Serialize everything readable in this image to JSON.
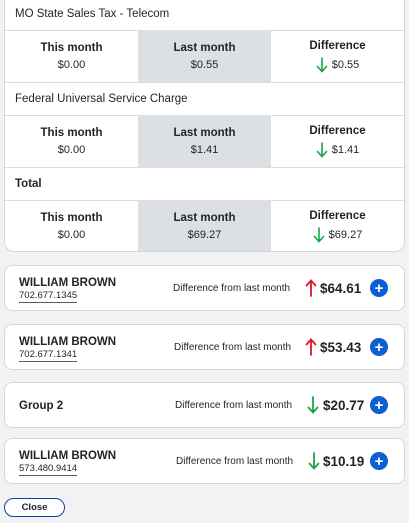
{
  "taxes": [
    {
      "title": "MO State Sales Tax - Telecom",
      "this_month": "$0.00",
      "last_month": "$0.55",
      "difference": "$0.55",
      "direction": "down"
    },
    {
      "title": "Federal Universal Service Charge",
      "this_month": "$0.00",
      "last_month": "$1.41",
      "difference": "$1.41",
      "direction": "down"
    },
    {
      "title": "Total",
      "this_month": "$0.00",
      "last_month": "$69.27",
      "difference": "$69.27",
      "direction": "down"
    }
  ],
  "column_labels": {
    "this_month": "This month",
    "last_month": "Last month",
    "difference": "Difference"
  },
  "lines": [
    {
      "name": "WILLIAM BROWN",
      "phone": "702.677.1345",
      "label": "Difference from last month",
      "amount": "$64.61",
      "direction": "up"
    },
    {
      "name": "WILLIAM BROWN",
      "phone": "702.677.1341",
      "label": "Difference from last month",
      "amount": "$53.43",
      "direction": "up"
    },
    {
      "name": "Group 2",
      "phone": "",
      "label": "Difference from last month",
      "amount": "$20.77",
      "direction": "down"
    },
    {
      "name": "WILLIAM BROWN",
      "phone": "573.480.9414",
      "label": "Difference from last month",
      "amount": "$10.19",
      "direction": "down"
    }
  ],
  "close_label": "Close",
  "colors": {
    "up": "#e0142b",
    "down": "#1aa547",
    "accent": "#0b5fd3"
  }
}
